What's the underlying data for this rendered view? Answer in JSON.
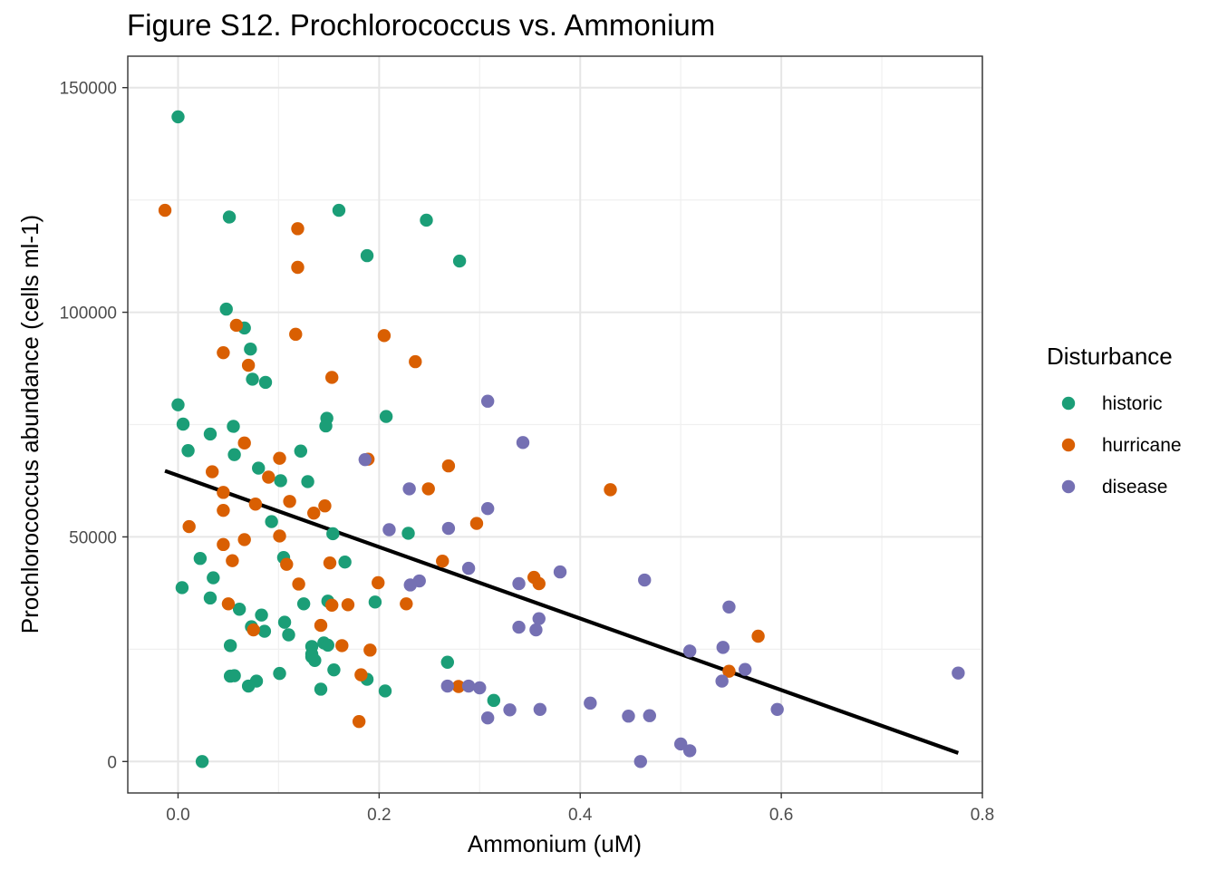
{
  "chart_data": {
    "type": "scatter",
    "title": "Figure S12. Prochlorococcus vs. Ammonium",
    "xlabel": "Ammonium (uM)",
    "ylabel": "Prochlorococcus abundance (cells ml-1)",
    "xlim": [
      -0.05,
      0.8
    ],
    "ylim": [
      -7000,
      157000
    ],
    "x_ticks": [
      0.0,
      0.2,
      0.4,
      0.6,
      0.8
    ],
    "x_tick_labels": [
      "0.0",
      "0.2",
      "0.4",
      "0.6",
      "0.8"
    ],
    "y_ticks": [
      0,
      50000,
      100000,
      150000
    ],
    "y_tick_labels": [
      "0",
      "50000",
      "100000",
      "150000"
    ],
    "grid": true,
    "legend": {
      "title": "Disturbance",
      "placement": "right"
    },
    "series": [
      {
        "name": "historic",
        "color": "#1b9e77",
        "points": [
          [
            0.0,
            143500
          ],
          [
            0.051,
            121200
          ],
          [
            0.16,
            122700
          ],
          [
            0.247,
            120500
          ],
          [
            0.188,
            112600
          ],
          [
            0.28,
            111400
          ],
          [
            0.048,
            100700
          ],
          [
            0.066,
            96500
          ],
          [
            0.072,
            91800
          ],
          [
            0.074,
            85100
          ],
          [
            0.087,
            84400
          ],
          [
            0.0,
            79400
          ],
          [
            0.148,
            76400
          ],
          [
            0.207,
            76800
          ],
          [
            0.147,
            74700
          ],
          [
            0.005,
            75100
          ],
          [
            0.055,
            74600
          ],
          [
            0.032,
            72900
          ],
          [
            0.01,
            69200
          ],
          [
            0.056,
            68300
          ],
          [
            0.122,
            69100
          ],
          [
            0.08,
            65300
          ],
          [
            0.102,
            62500
          ],
          [
            0.129,
            62300
          ],
          [
            0.093,
            53400
          ],
          [
            0.154,
            50700
          ],
          [
            0.229,
            50800
          ],
          [
            0.105,
            45400
          ],
          [
            0.022,
            45200
          ],
          [
            0.166,
            44400
          ],
          [
            0.035,
            40900
          ],
          [
            0.004,
            38700
          ],
          [
            0.032,
            36400
          ],
          [
            0.149,
            35700
          ],
          [
            0.196,
            35500
          ],
          [
            0.125,
            35100
          ],
          [
            0.061,
            33900
          ],
          [
            0.083,
            32600
          ],
          [
            0.106,
            31000
          ],
          [
            0.073,
            30000
          ],
          [
            0.086,
            29000
          ],
          [
            0.11,
            28200
          ],
          [
            0.052,
            25800
          ],
          [
            0.133,
            25600
          ],
          [
            0.145,
            26400
          ],
          [
            0.149,
            25900
          ],
          [
            0.133,
            23900
          ],
          [
            0.133,
            23300
          ],
          [
            0.136,
            22500
          ],
          [
            0.268,
            22100
          ],
          [
            0.155,
            20400
          ],
          [
            0.052,
            19000
          ],
          [
            0.056,
            19100
          ],
          [
            0.101,
            19600
          ],
          [
            0.188,
            18300
          ],
          [
            0.078,
            17900
          ],
          [
            0.07,
            16800
          ],
          [
            0.142,
            16100
          ],
          [
            0.206,
            15700
          ],
          [
            0.314,
            13600
          ],
          [
            0.024,
            0
          ]
        ]
      },
      {
        "name": "hurricane",
        "color": "#d95f02",
        "points": [
          [
            -0.013,
            122700
          ],
          [
            0.119,
            118600
          ],
          [
            0.119,
            110000
          ],
          [
            0.058,
            97100
          ],
          [
            0.117,
            95100
          ],
          [
            0.205,
            94800
          ],
          [
            0.045,
            91000
          ],
          [
            0.07,
            88200
          ],
          [
            0.236,
            89000
          ],
          [
            0.153,
            85500
          ],
          [
            0.066,
            70900
          ],
          [
            0.101,
            67500
          ],
          [
            0.189,
            67300
          ],
          [
            0.269,
            65800
          ],
          [
            0.034,
            64500
          ],
          [
            0.09,
            63300
          ],
          [
            0.249,
            60700
          ],
          [
            0.43,
            60500
          ],
          [
            0.045,
            59900
          ],
          [
            0.077,
            57300
          ],
          [
            0.111,
            57900
          ],
          [
            0.146,
            56900
          ],
          [
            0.045,
            55900
          ],
          [
            0.135,
            55300
          ],
          [
            0.297,
            53000
          ],
          [
            0.011,
            52300
          ],
          [
            0.066,
            49400
          ],
          [
            0.101,
            50200
          ],
          [
            0.045,
            48300
          ],
          [
            0.054,
            44700
          ],
          [
            0.108,
            43900
          ],
          [
            0.151,
            44200
          ],
          [
            0.263,
            44600
          ],
          [
            0.354,
            41000
          ],
          [
            0.359,
            39600
          ],
          [
            0.12,
            39500
          ],
          [
            0.199,
            39800
          ],
          [
            0.05,
            35100
          ],
          [
            0.153,
            34800
          ],
          [
            0.169,
            34900
          ],
          [
            0.227,
            35100
          ],
          [
            0.142,
            30300
          ],
          [
            0.075,
            29300
          ],
          [
            0.163,
            25800
          ],
          [
            0.191,
            24800
          ],
          [
            0.577,
            27900
          ],
          [
            0.548,
            20100
          ],
          [
            0.182,
            19300
          ],
          [
            0.279,
            16700
          ],
          [
            0.18,
            8900
          ]
        ]
      },
      {
        "name": "disease",
        "color": "#7570b3",
        "points": [
          [
            0.308,
            80200
          ],
          [
            0.343,
            71000
          ],
          [
            0.186,
            67200
          ],
          [
            0.23,
            60700
          ],
          [
            0.308,
            56300
          ],
          [
            0.21,
            51600
          ],
          [
            0.269,
            51900
          ],
          [
            0.289,
            43000
          ],
          [
            0.38,
            42200
          ],
          [
            0.464,
            40400
          ],
          [
            0.24,
            40200
          ],
          [
            0.231,
            39300
          ],
          [
            0.339,
            39600
          ],
          [
            0.359,
            31800
          ],
          [
            0.339,
            29900
          ],
          [
            0.356,
            29300
          ],
          [
            0.548,
            34400
          ],
          [
            0.509,
            24600
          ],
          [
            0.542,
            25400
          ],
          [
            0.564,
            20500
          ],
          [
            0.541,
            17900
          ],
          [
            0.776,
            19700
          ],
          [
            0.268,
            16800
          ],
          [
            0.289,
            16800
          ],
          [
            0.3,
            16400
          ],
          [
            0.41,
            13000
          ],
          [
            0.36,
            11600
          ],
          [
            0.33,
            11500
          ],
          [
            0.596,
            11600
          ],
          [
            0.448,
            10100
          ],
          [
            0.469,
            10200
          ],
          [
            0.308,
            9700
          ],
          [
            0.5,
            3900
          ],
          [
            0.509,
            2400
          ],
          [
            0.46,
            0
          ]
        ]
      }
    ],
    "trend_line": {
      "color": "#000000",
      "x": [
        -0.013,
        0.776
      ],
      "y": [
        64700,
        1900
      ]
    }
  }
}
